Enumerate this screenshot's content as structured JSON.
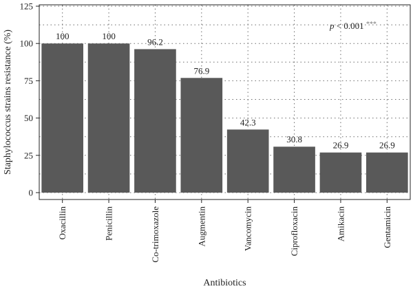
{
  "chart_data": {
    "type": "bar",
    "categories": [
      "Oxacillin",
      "Penicillin",
      "Co-trimoxazole",
      "Augmentin",
      "Vancomycin",
      "Ciprofloxacin",
      "Amikacin",
      "Gentamicin"
    ],
    "values": [
      100,
      100,
      96.2,
      76.9,
      42.3,
      30.8,
      26.9,
      26.9
    ],
    "value_labels": [
      "100",
      "100",
      "96.2",
      "76.9",
      "42.3",
      "30.8",
      "26.9",
      "26.9"
    ],
    "title": "",
    "xlabel": "Antibiotics",
    "ylabel": "Staphylococcus strains resistance (%)",
    "ylim": [
      0,
      125
    ],
    "yticks": [
      0,
      25,
      50,
      75,
      100,
      125
    ],
    "grid": true,
    "bar_color": "#595959",
    "annotation": {
      "p": "p",
      "rest": " < 0.001 ",
      "stars": "***"
    }
  }
}
